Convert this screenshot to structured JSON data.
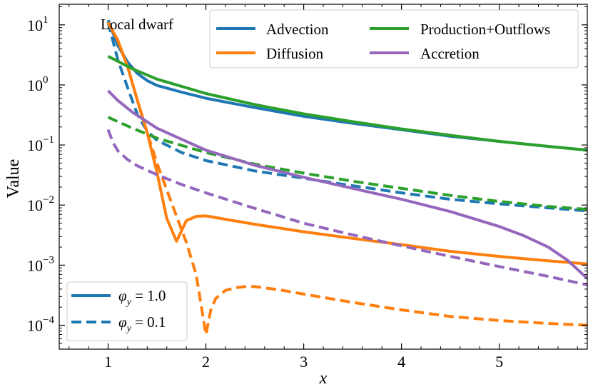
{
  "chart_data": {
    "type": "line",
    "title": "",
    "annotation": "Local dwarf",
    "xlabel": "x",
    "ylabel": "Value",
    "xlim": [
      0.5,
      5.9
    ],
    "ylim": [
      4e-05,
      22
    ],
    "yscale": "log",
    "xticks": [
      1,
      2,
      3,
      4,
      5
    ],
    "xtick_labels": [
      "1",
      "2",
      "3",
      "4",
      "5"
    ],
    "yticks": [
      0.0001,
      0.001,
      0.01,
      0.1,
      1,
      10
    ],
    "ytick_labels": [
      {
        "base": "10",
        "exp": "−4"
      },
      {
        "base": "10",
        "exp": "−3"
      },
      {
        "base": "10",
        "exp": "−2"
      },
      {
        "base": "10",
        "exp": "−1"
      },
      {
        "base": "10",
        "exp": "0"
      },
      {
        "base": "10",
        "exp": "1"
      }
    ],
    "colors": {
      "Advection": "#1f77b4",
      "Diffusion": "#ff7f0e",
      "Production+Outflows": "#2ca02c",
      "Accretion": "#9467bd"
    },
    "legend_processes": {
      "placement": "top-right",
      "entries": [
        "Advection",
        "Diffusion",
        "Production+Outflows",
        "Accretion"
      ]
    },
    "legend_phi": {
      "placement": "bottom-left",
      "entries": [
        {
          "style": "solid",
          "symbol": "φ",
          "sub": "y",
          "value": " = 1.0"
        },
        {
          "style": "dashed",
          "symbol": "φ",
          "sub": "y",
          "value": " = 0.1"
        }
      ]
    },
    "series": [
      {
        "name": "Advection",
        "phi": "1.0",
        "style": "solid",
        "x": [
          1.0,
          1.1,
          1.2,
          1.3,
          1.4,
          1.5,
          1.75,
          2.0,
          2.5,
          3.0,
          3.5,
          4.0,
          4.5,
          5.0,
          5.5,
          5.9
        ],
        "y": [
          12,
          4.5,
          2.4,
          1.55,
          1.18,
          0.98,
          0.76,
          0.6,
          0.42,
          0.3,
          0.23,
          0.18,
          0.14,
          0.115,
          0.095,
          0.082
        ]
      },
      {
        "name": "Advection",
        "phi": "0.1",
        "style": "dashed",
        "x": [
          1.0,
          1.1,
          1.2,
          1.3,
          1.4,
          1.5,
          1.75,
          2.0,
          2.5,
          3.0,
          3.5,
          4.0,
          4.5,
          5.0,
          5.5,
          5.9
        ],
        "y": [
          11,
          2.6,
          0.9,
          0.32,
          0.17,
          0.12,
          0.075,
          0.055,
          0.037,
          0.028,
          0.021,
          0.016,
          0.0125,
          0.0105,
          0.009,
          0.008
        ]
      },
      {
        "name": "Diffusion",
        "phi": "1.0",
        "style": "solid",
        "x": [
          1.0,
          1.1,
          1.2,
          1.3,
          1.4,
          1.5,
          1.6,
          1.7,
          1.8,
          1.9,
          2.0,
          2.2,
          2.5,
          3.0,
          3.5,
          4.0,
          4.5,
          5.0,
          5.5,
          5.9
        ],
        "y": [
          11,
          5.5,
          2.0,
          0.55,
          0.16,
          0.035,
          0.006,
          0.0025,
          0.0055,
          0.0065,
          0.0066,
          0.0058,
          0.0048,
          0.0036,
          0.0028,
          0.0022,
          0.0017,
          0.0014,
          0.00118,
          0.00105
        ]
      },
      {
        "name": "Diffusion",
        "phi": "0.1",
        "style": "dashed",
        "x": [
          1.0,
          1.1,
          1.2,
          1.3,
          1.4,
          1.5,
          1.6,
          1.7,
          1.8,
          1.9,
          1.95,
          2.0,
          2.05,
          2.1,
          2.2,
          2.3,
          2.4,
          2.5,
          2.75,
          3.0,
          3.5,
          4.0,
          4.5,
          5.0,
          5.5,
          5.9
        ],
        "y": [
          11,
          5.5,
          2.0,
          0.55,
          0.16,
          0.05,
          0.018,
          0.0065,
          0.0024,
          0.0007,
          0.00022,
          7e-05,
          0.00018,
          0.00028,
          0.00038,
          0.00042,
          0.00044,
          0.00044,
          0.00039,
          0.00033,
          0.00024,
          0.00018,
          0.00014,
          0.00012,
          0.000107,
          0.0001
        ]
      },
      {
        "name": "Production+Outflows",
        "phi": "1.0",
        "style": "solid",
        "x": [
          1.0,
          1.25,
          1.5,
          2.0,
          2.5,
          3.0,
          3.5,
          4.0,
          4.5,
          5.0,
          5.5,
          5.9
        ],
        "y": [
          3.0,
          1.85,
          1.25,
          0.72,
          0.47,
          0.33,
          0.245,
          0.185,
          0.145,
          0.115,
          0.095,
          0.082
        ]
      },
      {
        "name": "Production+Outflows",
        "phi": "0.1",
        "style": "dashed",
        "x": [
          1.0,
          1.25,
          1.5,
          2.0,
          2.5,
          3.0,
          3.5,
          4.0,
          4.5,
          5.0,
          5.5,
          5.9
        ],
        "y": [
          0.29,
          0.19,
          0.13,
          0.075,
          0.048,
          0.034,
          0.025,
          0.019,
          0.0145,
          0.0115,
          0.0095,
          0.0085
        ]
      },
      {
        "name": "Accretion",
        "phi": "1.0",
        "style": "solid",
        "x": [
          1.0,
          1.1,
          1.25,
          1.5,
          2.0,
          2.5,
          3.0,
          3.5,
          4.0,
          4.5,
          5.0,
          5.25,
          5.5,
          5.7,
          5.9
        ],
        "y": [
          0.8,
          0.55,
          0.35,
          0.19,
          0.082,
          0.046,
          0.029,
          0.019,
          0.0125,
          0.0078,
          0.0044,
          0.0031,
          0.002,
          0.0012,
          0.0006
        ]
      },
      {
        "name": "Accretion",
        "phi": "0.1",
        "style": "dashed",
        "x": [
          1.0,
          1.05,
          1.1,
          1.2,
          1.3,
          1.5,
          1.75,
          2.0,
          2.5,
          3.0,
          3.5,
          4.0,
          4.5,
          5.0,
          5.5,
          5.9
        ],
        "y": [
          0.18,
          0.11,
          0.08,
          0.057,
          0.045,
          0.032,
          0.022,
          0.016,
          0.0088,
          0.005,
          0.0032,
          0.0021,
          0.0014,
          0.00095,
          0.00065,
          0.00047
        ]
      }
    ]
  }
}
